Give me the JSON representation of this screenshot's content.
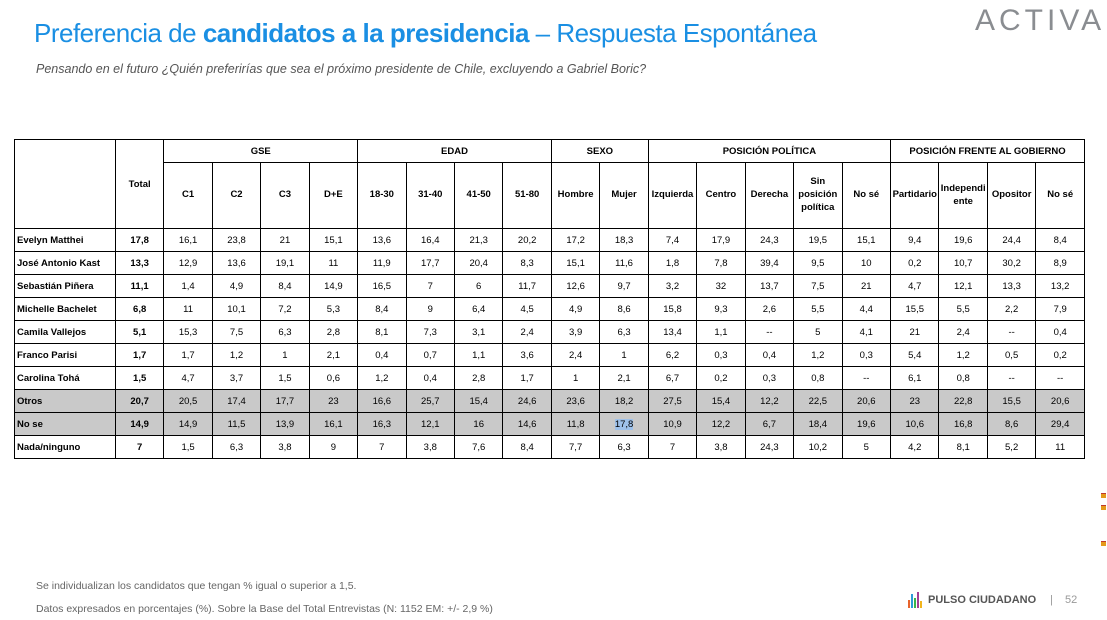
{
  "title": {
    "pre": "Preferencia de ",
    "bold": "candidatos a la presidencia",
    "post": " – Respuesta Espontánea"
  },
  "subtitle": "Pensando en el futuro ¿Quién preferirías que sea el próximo presidente de Chile, excluyendo a Gabriel Boric?",
  "logo": "ACTIVA",
  "table": {
    "total_label": "Total",
    "groups": [
      "GSE",
      "EDAD",
      "SEXO",
      "POSICIÓN POLÍTICA",
      "POSICIÓN FRENTE AL GOBIERNO"
    ],
    "subheaders": [
      "C1",
      "C2",
      "C3",
      "D+E",
      "18-30",
      "31-40",
      "41-50",
      "51-80",
      "Hombre",
      "Mujer",
      "Izquierda",
      "Centro",
      "Derecha",
      "Sin posición política",
      "No sé",
      "Partidario",
      "Independi ente",
      "Opositor",
      "No sé"
    ],
    "rows": [
      {
        "name": "Evelyn Matthei",
        "total": "17,8",
        "values": [
          "16,1",
          "23,8",
          "21",
          "15,1",
          "13,6",
          "16,4",
          "21,3",
          "20,2",
          "17,2",
          "18,3",
          "7,4",
          "17,9",
          "24,3",
          "19,5",
          "15,1",
          "9,4",
          "19,6",
          "24,4",
          "8,4"
        ]
      },
      {
        "name": "José Antonio Kast",
        "total": "13,3",
        "values": [
          "12,9",
          "13,6",
          "19,1",
          "11",
          "11,9",
          "17,7",
          "20,4",
          "8,3",
          "15,1",
          "11,6",
          "1,8",
          "7,8",
          "39,4",
          "9,5",
          "10",
          "0,2",
          "10,7",
          "30,2",
          "8,9"
        ]
      },
      {
        "name": "Sebastián Piñera",
        "total": "11,1",
        "values": [
          "1,4",
          "4,9",
          "8,4",
          "14,9",
          "16,5",
          "7",
          "6",
          "11,7",
          "12,6",
          "9,7",
          "3,2",
          "32",
          "13,7",
          "7,5",
          "21",
          "4,7",
          "12,1",
          "13,3",
          "13,2"
        ]
      },
      {
        "name": "Michelle Bachelet",
        "total": "6,8",
        "values": [
          "11",
          "10,1",
          "7,2",
          "5,3",
          "8,4",
          "9",
          "6,4",
          "4,5",
          "4,9",
          "8,6",
          "15,8",
          "9,3",
          "2,6",
          "5,5",
          "4,4",
          "15,5",
          "5,5",
          "2,2",
          "7,9"
        ]
      },
      {
        "name": "Camila Vallejos",
        "total": "5,1",
        "values": [
          "15,3",
          "7,5",
          "6,3",
          "2,8",
          "8,1",
          "7,3",
          "3,1",
          "2,4",
          "3,9",
          "6,3",
          "13,4",
          "1,1",
          "--",
          "5",
          "4,1",
          "21",
          "2,4",
          "--",
          "0,4"
        ]
      },
      {
        "name": "Franco Parisi",
        "total": "1,7",
        "values": [
          "1,7",
          "1,2",
          "1",
          "2,1",
          "0,4",
          "0,7",
          "1,1",
          "3,6",
          "2,4",
          "1",
          "6,2",
          "0,3",
          "0,4",
          "1,2",
          "0,3",
          "5,4",
          "1,2",
          "0,5",
          "0,2"
        ]
      },
      {
        "name": "Carolina Tohá",
        "total": "1,5",
        "values": [
          "4,7",
          "3,7",
          "1,5",
          "0,6",
          "1,2",
          "0,4",
          "2,8",
          "1,7",
          "1",
          "2,1",
          "6,7",
          "0,2",
          "0,3",
          "0,8",
          "--",
          "6,1",
          "0,8",
          "--",
          "--"
        ]
      },
      {
        "name": "Otros",
        "total": "20,7",
        "values": [
          "20,5",
          "17,4",
          "17,7",
          "23",
          "16,6",
          "25,7",
          "15,4",
          "24,6",
          "23,6",
          "18,2",
          "27,5",
          "15,4",
          "12,2",
          "22,5",
          "20,6",
          "23",
          "22,8",
          "15,5",
          "20,6"
        ],
        "gray": true
      },
      {
        "name": "No se",
        "total": "14,9",
        "values": [
          "14,9",
          "11,5",
          "13,9",
          "16,1",
          "16,3",
          "12,1",
          "16",
          "14,6",
          "11,8",
          "17,8",
          "10,9",
          "12,2",
          "6,7",
          "18,4",
          "19,6",
          "10,6",
          "16,8",
          "8,6",
          "29,4"
        ],
        "gray": true,
        "highlight_col": 9
      },
      {
        "name": "Nada/ninguno",
        "total": "7",
        "values": [
          "1,5",
          "6,3",
          "3,8",
          "9",
          "7",
          "3,8",
          "7,6",
          "8,4",
          "7,7",
          "6,3",
          "7",
          "3,8",
          "24,3",
          "10,2",
          "5",
          "4,2",
          "8,1",
          "5,2",
          "11"
        ]
      }
    ]
  },
  "footnotes": [
    "Se individualizan los candidatos que tengan % igual o superior a 1,5.",
    "Datos expresados en porcentajes (%). Sobre la Base del Total Entrevistas (N: 1152  EM: +/- 2,9 %)"
  ],
  "brand": {
    "name": "PULSO CIUDADANO",
    "separator": "|",
    "page": "52"
  },
  "colors": {
    "title": "#1a8fe3",
    "gray_rows": "#c9c9c9",
    "highlight": "#9ec1ea"
  }
}
